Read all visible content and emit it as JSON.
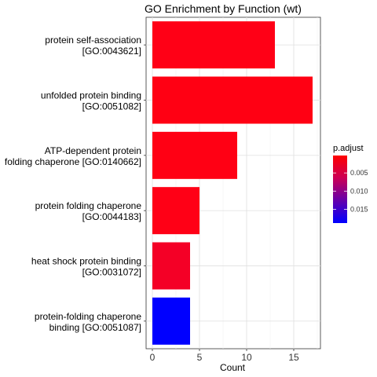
{
  "chart_data": {
    "type": "bar",
    "orientation": "horizontal",
    "title": "GO Enrichment by Function (wt)",
    "xlabel": "Count",
    "ylabel": "",
    "xlim": [
      0,
      17.85
    ],
    "xticks": [
      0,
      5,
      10,
      15
    ],
    "grid": true,
    "categories": [
      {
        "line1": "protein self-association",
        "line2": "[GO:0043621]"
      },
      {
        "line1": "unfolded protein binding",
        "line2": "[GO:0051082]"
      },
      {
        "line1": "ATP-dependent protein",
        "line2": "folding chaperone [GO:0140662]"
      },
      {
        "line1": "protein folding chaperone",
        "line2": "[GO:0044183]"
      },
      {
        "line1": "heat shock protein binding",
        "line2": "[GO:0031072]"
      },
      {
        "line1": "protein-folding chaperone",
        "line2": "binding [GO:0051087]"
      }
    ],
    "values": [
      13,
      17,
      9,
      5,
      4,
      4
    ],
    "colors": [
      "#FF0016",
      "#FF0013",
      "#FF0014",
      "#FF0016",
      "#F40026",
      "#0000FF"
    ],
    "legend": {
      "title": "p.adjust",
      "placement": "right",
      "gradient": [
        "#FF0000",
        "#CC0055",
        "#6600AA",
        "#0000FF"
      ],
      "range": [
        0.0002,
        0.0188
      ],
      "ticks": [
        0.005,
        0.01,
        0.015
      ],
      "tick_labels": [
        "0.005",
        "0.010",
        "0.015"
      ]
    }
  }
}
